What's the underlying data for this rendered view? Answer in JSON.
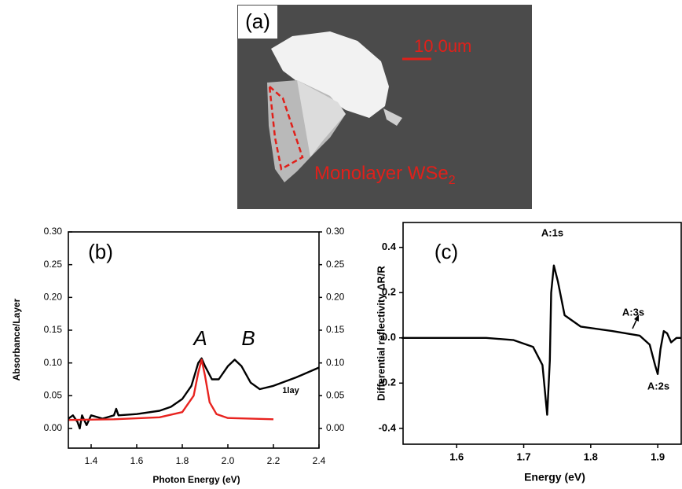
{
  "image_panel": {
    "label": "(a)",
    "scale_bar": "10.0um",
    "annotation": "Monolayer WSe",
    "annotation_sub": "2"
  },
  "chart_data": [
    {
      "type": "line",
      "panel_label": "(b)",
      "xlabel": "Photon Energy (eV)",
      "ylabel": "Absorbance/Layer",
      "annotations": [
        "A",
        "B",
        "1lay"
      ],
      "xlim": [
        1.3,
        2.4
      ],
      "xticks": [
        1.4,
        1.6,
        1.8,
        {
          "value": 2,
          "label": "2.0"
        },
        2.2,
        2.4
      ],
      "ylim": [
        -0.03,
        0.3
      ],
      "yticks": [
        {
          "value": 0,
          "label": "0.00"
        },
        {
          "value": 0.05,
          "label": "0.05"
        },
        {
          "value": 0.1,
          "label": "0.10"
        },
        {
          "value": 0.15,
          "label": "0.15"
        },
        {
          "value": 0.2,
          "label": "0.20"
        },
        {
          "value": 0.25,
          "label": "0.25"
        },
        {
          "value": 0.3,
          "label": "0.30"
        }
      ],
      "y2lim": [
        -0.03,
        0.3
      ],
      "y2ticks": [
        {
          "value": 0,
          "label": "0.00"
        },
        {
          "value": 0.05,
          "label": "0.05"
        },
        {
          "value": 0.1,
          "label": "0.10"
        },
        {
          "value": 0.15,
          "label": "0.15"
        },
        {
          "value": 0.2,
          "label": "0.20"
        },
        {
          "value": 0.25,
          "label": "0.25"
        },
        {
          "value": 0.3,
          "label": "0.30"
        }
      ],
      "series": [
        {
          "color": "#000000",
          "x": [
            1.3,
            1.32,
            1.34,
            1.35,
            1.36,
            1.38,
            1.4,
            1.45,
            1.5,
            1.51,
            1.52,
            1.6,
            1.7,
            1.75,
            1.8,
            1.84,
            1.87,
            1.885,
            1.9,
            1.93,
            1.96,
            2.0,
            2.03,
            2.06,
            2.1,
            2.14,
            2.2,
            2.3,
            2.4
          ],
          "values": [
            0.015,
            0.02,
            0.01,
            0.0,
            0.02,
            0.005,
            0.02,
            0.015,
            0.02,
            0.03,
            0.02,
            0.022,
            0.027,
            0.033,
            0.045,
            0.065,
            0.1,
            0.107,
            0.095,
            0.075,
            0.075,
            0.095,
            0.105,
            0.095,
            0.07,
            0.06,
            0.065,
            0.078,
            0.093
          ]
        },
        {
          "color": "#e8231f",
          "x": [
            1.3,
            1.5,
            1.7,
            1.8,
            1.85,
            1.87,
            1.885,
            1.9,
            1.92,
            1.95,
            2.0,
            2.2
          ],
          "values": [
            0.013,
            0.014,
            0.017,
            0.025,
            0.05,
            0.085,
            0.105,
            0.08,
            0.04,
            0.022,
            0.016,
            0.014
          ]
        }
      ]
    },
    {
      "type": "line",
      "panel_label": "(c)",
      "xlabel": "Energy (eV)",
      "ylabel": "Differential reflectivity ΔR/R",
      "annotations": [
        "A:1s",
        "A:2s",
        "A:3s"
      ],
      "xlim": [
        1.52,
        1.935
      ],
      "xticks": [
        1.6,
        1.7,
        1.8,
        1.9
      ],
      "ylim": [
        -0.47,
        0.51
      ],
      "yticks": [
        -0.4,
        -0.2,
        {
          "value": 0,
          "label": "0.0"
        },
        0.2,
        0.4
      ],
      "series": [
        {
          "color": "#000000",
          "x": [
            1.518,
            1.644,
            1.685,
            1.714,
            1.728,
            1.735,
            1.739,
            1.741,
            1.745,
            1.751,
            1.761,
            1.785,
            1.832,
            1.873,
            1.888,
            1.896,
            1.9,
            1.904,
            1.909,
            1.914,
            1.92,
            1.928,
            1.935
          ],
          "values": [
            0.0,
            0.0,
            -0.01,
            -0.04,
            -0.12,
            -0.34,
            -0.1,
            0.2,
            0.32,
            0.25,
            0.1,
            0.05,
            0.03,
            0.01,
            -0.03,
            -0.12,
            -0.16,
            -0.05,
            0.03,
            0.02,
            -0.02,
            0.0,
            0.0
          ]
        }
      ]
    }
  ]
}
